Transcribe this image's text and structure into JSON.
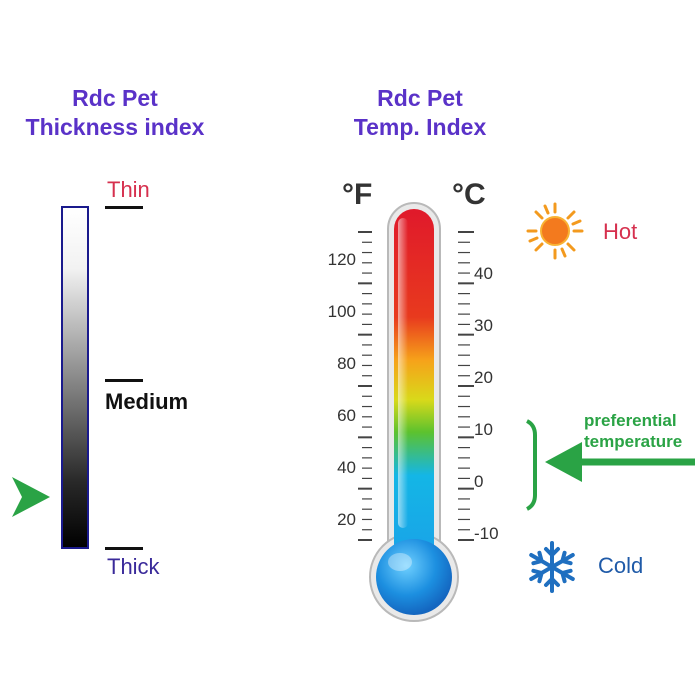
{
  "thickness": {
    "title_line1": "Rdc Pet",
    "title_line2": "Thickness index",
    "labels": {
      "thin": "Thin",
      "medium": "Medium",
      "thick": "Thick"
    },
    "colors": {
      "thin": "#d6304e",
      "medium": "#111111",
      "thick": "#3a2a9a",
      "marker": "#2aa345"
    }
  },
  "temperature": {
    "title_line1": "Rdc Pet",
    "title_line2": "Temp. Index",
    "unit_f": "°F",
    "unit_c": "°C",
    "fahrenheit_ticks": [
      "120",
      "100",
      "80",
      "60",
      "40",
      "20"
    ],
    "celsius_ticks": [
      "40",
      "30",
      "20",
      "10",
      "0",
      "-10"
    ],
    "hot_label": "Hot",
    "cold_label": "Cold",
    "preferential_line1": "preferential",
    "preferential_line2": "temperature",
    "colors": {
      "hot": "#d6304e",
      "cold": "#1f5aa8",
      "preferential": "#2aa345",
      "sun": "#f39a1e",
      "snowflake": "#1f6fc0"
    }
  }
}
